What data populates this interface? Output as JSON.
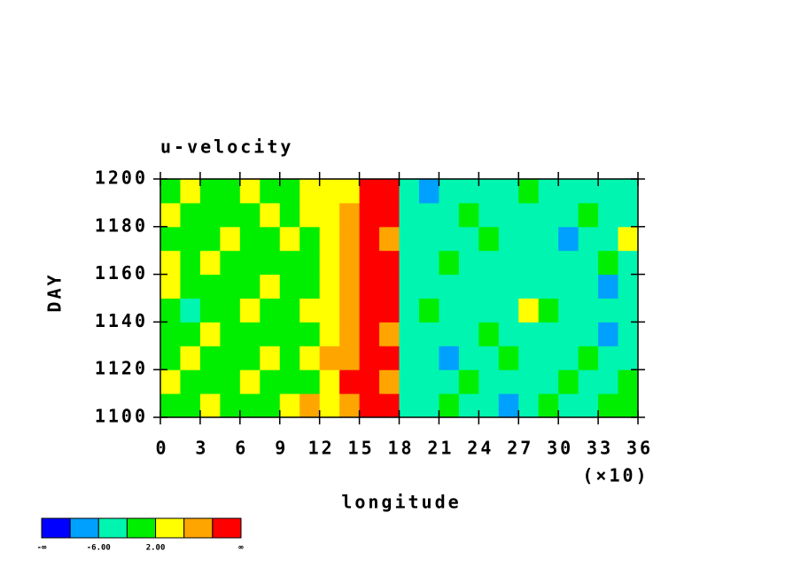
{
  "chart_data": {
    "type": "contour",
    "title": "u-velocity",
    "xlabel": "longitude",
    "ylabel": "DAY",
    "x_multiplier": "(×10)",
    "xlim": [
      0,
      36
    ],
    "xticks": [
      0,
      3,
      6,
      9,
      12,
      15,
      18,
      21,
      24,
      27,
      30,
      33,
      36
    ],
    "ylim": [
      1100,
      1200
    ],
    "yticks": [
      1100,
      1120,
      1140,
      1160,
      1180,
      1200
    ],
    "x": [
      0.75,
      2.25,
      3.75,
      5.25,
      6.75,
      8.25,
      9.75,
      11.25,
      12.75,
      14.25,
      15.75,
      17.25,
      18.75,
      20.25,
      21.75,
      23.25,
      24.75,
      26.25,
      27.75,
      29.25,
      30.75,
      32.25,
      33.75,
      35.25
    ],
    "y": [
      1105,
      1115,
      1125,
      1135,
      1145,
      1155,
      1165,
      1175,
      1185,
      1195
    ],
    "z": [
      [
        0,
        0,
        3,
        0,
        0,
        0,
        3,
        7,
        3,
        7,
        12,
        12,
        -3,
        -3,
        0,
        -3,
        -3,
        -7,
        -3,
        0,
        -3,
        -3,
        0,
        0
      ],
      [
        3,
        0,
        0,
        0,
        3,
        0,
        0,
        0,
        3,
        12,
        12,
        7,
        -3,
        -3,
        -3,
        0,
        -3,
        -3,
        -3,
        -3,
        0,
        -3,
        -3,
        0
      ],
      [
        0,
        3,
        0,
        0,
        0,
        3,
        0,
        3,
        7,
        7,
        12,
        12,
        -3,
        -3,
        -7,
        -3,
        -3,
        0,
        -3,
        -3,
        -3,
        0,
        -3,
        -3
      ],
      [
        0,
        0,
        3,
        0,
        0,
        0,
        0,
        0,
        3,
        7,
        12,
        7,
        -3,
        -3,
        -3,
        -3,
        0,
        -3,
        -3,
        -3,
        -3,
        -3,
        -7,
        -3
      ],
      [
        0,
        -3,
        0,
        0,
        3,
        0,
        0,
        3,
        3,
        7,
        12,
        12,
        -3,
        0,
        -3,
        -3,
        -3,
        -3,
        3,
        0,
        -3,
        -3,
        -3,
        -3
      ],
      [
        3,
        0,
        0,
        0,
        0,
        3,
        0,
        0,
        3,
        7,
        12,
        12,
        -3,
        -3,
        -3,
        -3,
        -3,
        -3,
        -3,
        -3,
        -3,
        -3,
        -7,
        -3
      ],
      [
        3,
        0,
        3,
        0,
        0,
        0,
        0,
        0,
        3,
        7,
        12,
        12,
        -3,
        -3,
        0,
        -3,
        -3,
        -3,
        -3,
        -3,
        -3,
        -3,
        0,
        -3
      ],
      [
        0,
        0,
        0,
        3,
        0,
        0,
        3,
        0,
        3,
        7,
        12,
        7,
        -3,
        -3,
        -3,
        -3,
        0,
        -3,
        -3,
        -3,
        -7,
        -3,
        -3,
        3
      ],
      [
        3,
        0,
        0,
        0,
        0,
        3,
        0,
        3,
        3,
        7,
        12,
        12,
        -3,
        -3,
        -3,
        0,
        -3,
        -3,
        -3,
        -3,
        -3,
        0,
        -3,
        -3
      ],
      [
        0,
        3,
        0,
        0,
        3,
        0,
        0,
        3,
        3,
        3,
        12,
        12,
        -3,
        -7,
        -3,
        -3,
        -3,
        -3,
        0,
        -3,
        -3,
        -3,
        -3,
        -3
      ]
    ],
    "levels": [
      -10,
      -6,
      -2,
      2,
      6,
      10
    ],
    "colors": [
      "#0000ff",
      "#00a0ff",
      "#00f5b0",
      "#00ee00",
      "#ffff00",
      "#ffa500",
      "#ff0000"
    ],
    "colorbar": {
      "min_label": "-∞",
      "max_label": "∞",
      "ticks": [
        {
          "value": -6,
          "label": "-6.00"
        },
        {
          "value": 2,
          "label": "2.00"
        }
      ]
    }
  }
}
